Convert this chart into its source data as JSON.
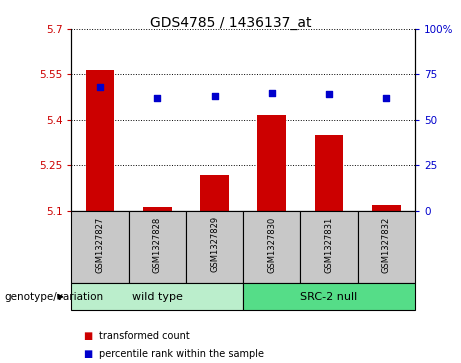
{
  "title": "GDS4785 / 1436137_at",
  "samples": [
    "GSM1327827",
    "GSM1327828",
    "GSM1327829",
    "GSM1327830",
    "GSM1327831",
    "GSM1327832"
  ],
  "bar_values": [
    5.565,
    5.112,
    5.218,
    5.415,
    5.35,
    5.118
  ],
  "dot_values": [
    68,
    62,
    63,
    65,
    64,
    62
  ],
  "ylim_left": [
    5.1,
    5.7
  ],
  "ylim_right": [
    0,
    100
  ],
  "yticks_left": [
    5.1,
    5.25,
    5.4,
    5.55,
    5.7
  ],
  "yticks_right": [
    0,
    25,
    50,
    75,
    100
  ],
  "ytick_labels_left": [
    "5.1",
    "5.25",
    "5.4",
    "5.55",
    "5.7"
  ],
  "ytick_labels_right": [
    "0",
    "25",
    "50",
    "75",
    "100%"
  ],
  "bar_color": "#CC0000",
  "dot_color": "#0000CC",
  "bar_bottom": 5.1,
  "sample_bg": "#C8C8C8",
  "green_light": "#AAEEBB",
  "green_dark": "#55CC77",
  "legend_items": [
    "transformed count",
    "percentile rank within the sample"
  ],
  "legend_colors": [
    "#CC0000",
    "#0000CC"
  ],
  "genotype_label": "genotype/variation",
  "left_ylabel_color": "#CC0000",
  "right_ylabel_color": "#0000CC",
  "group_ranges": [
    [
      0,
      3,
      "wild type"
    ],
    [
      3,
      6,
      "SRC-2 null"
    ]
  ],
  "group_light_color": "#BBEECC",
  "group_dark_color": "#55DD88"
}
